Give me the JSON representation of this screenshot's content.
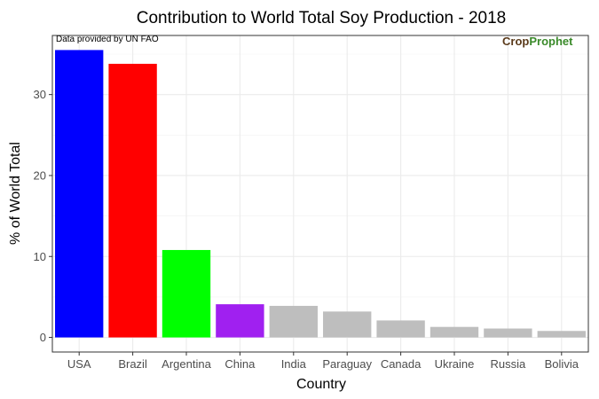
{
  "chart_data": {
    "type": "bar",
    "title": "Contribution to World Total Soy Production - 2018",
    "xlabel": "Country",
    "ylabel": "% of World Total",
    "categories": [
      "USA",
      "Brazil",
      "Argentina",
      "China",
      "India",
      "Paraguay",
      "Canada",
      "Ukraine",
      "Russia",
      "Bolivia"
    ],
    "values": [
      35.5,
      33.8,
      10.8,
      4.1,
      3.9,
      3.2,
      2.1,
      1.3,
      1.1,
      0.8
    ],
    "colors": [
      "#0000ff",
      "#ff0000",
      "#00ff00",
      "#a020f0",
      "#bebebe",
      "#bebebe",
      "#bebebe",
      "#bebebe",
      "#bebebe",
      "#bebebe"
    ],
    "ylim": [
      -1.8,
      37.3
    ],
    "yticks": [
      0,
      10,
      20,
      30
    ],
    "grid": true,
    "legend": "none",
    "annotation": "Data provided by UN FAO",
    "logo": {
      "part1": "Crop",
      "part2": "Prophet",
      "color1": "#5a3a1a",
      "color2": "#3a8a2a"
    }
  }
}
